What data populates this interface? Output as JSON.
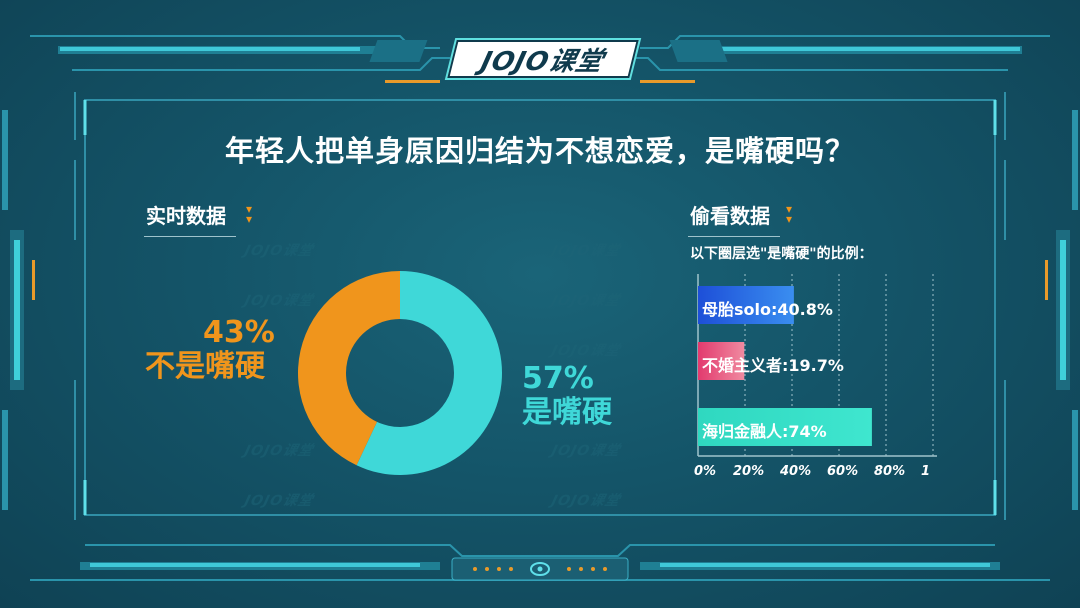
{
  "logo": {
    "text": "JOJO课堂"
  },
  "title": "年轻人把单身原因归结为不想恋爱，是嘴硬吗？",
  "left_section": {
    "heading": "实时数据"
  },
  "right_section": {
    "heading": "偷看数据",
    "note": "以下圈层选\"是嘴硬\"的比例："
  },
  "colors": {
    "teal": "#3fd8d8",
    "orange": "#f0951c",
    "blue": "#2f6ee6",
    "pink": "#ee4f7a",
    "green_teal": "#3ad8c0"
  },
  "chart_data": [
    {
      "type": "pie",
      "title": "",
      "slices": [
        {
          "label": "是嘴硬",
          "value": 57,
          "value_text": "57%",
          "color": "#3fd8d8"
        },
        {
          "label": "不是嘴硬",
          "value": 43,
          "value_text": "43%",
          "color": "#f0951c"
        }
      ]
    },
    {
      "type": "bar",
      "orientation": "horizontal",
      "categories": [
        "母胎solo",
        "不婚主义者",
        "海归金融人"
      ],
      "values": [
        40.8,
        19.7,
        74
      ],
      "labels": [
        "母胎solo:40.8%",
        "不婚主义者:19.7%",
        "海归金融人:74%"
      ],
      "colors": [
        [
          "#1d4fd8",
          "#3a8ef0"
        ],
        [
          "#e23a6e",
          "#f08aa0"
        ],
        [
          "#2fd8c0",
          "#3fe6cf"
        ]
      ],
      "xlim": [
        0,
        100
      ],
      "xticks": [
        "0%",
        "20%",
        "40%",
        "60%",
        "80%",
        "1"
      ],
      "grid": true
    }
  ]
}
